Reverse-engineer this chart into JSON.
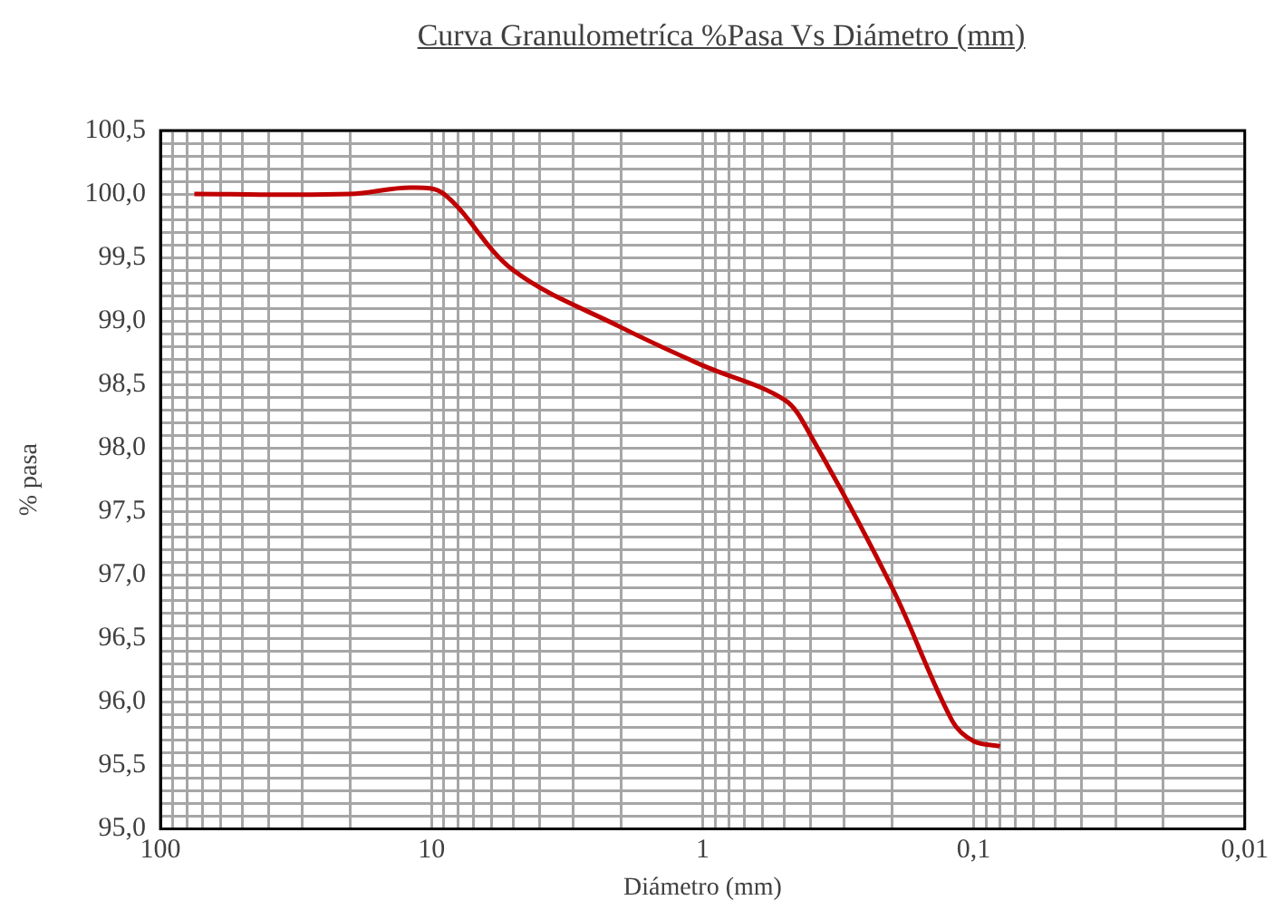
{
  "chart_data": {
    "type": "line",
    "title": "Curva Granulometríca %Pasa Vs Diámetro (mm)",
    "xlabel": "Diámetro (mm)",
    "ylabel": "% pasa",
    "log": "x",
    "grid": true,
    "legend": false,
    "marker": "none",
    "line_style": "solid",
    "xlim": [
      100,
      0.01
    ],
    "ylim": [
      95,
      100.5
    ],
    "xticks": [
      100,
      {
        "value": 90,
        "label": null
      },
      {
        "value": 80,
        "label": null
      },
      {
        "value": 70,
        "label": null
      },
      {
        "value": 60,
        "label": null
      },
      {
        "value": 50,
        "label": null
      },
      {
        "value": 40,
        "label": null
      },
      {
        "value": 30,
        "label": null
      },
      {
        "value": 20,
        "label": null
      },
      10,
      {
        "value": 9,
        "label": null
      },
      {
        "value": 8,
        "label": null
      },
      {
        "value": 7,
        "label": null
      },
      {
        "value": 6,
        "label": null
      },
      {
        "value": 5,
        "label": null
      },
      {
        "value": 4,
        "label": null
      },
      {
        "value": 3,
        "label": null
      },
      {
        "value": 2,
        "label": null
      },
      1,
      {
        "value": 0.9,
        "label": null
      },
      {
        "value": 0.8,
        "label": null
      },
      {
        "value": 0.7,
        "label": null
      },
      {
        "value": 0.6,
        "label": null
      },
      {
        "value": 0.5,
        "label": null
      },
      {
        "value": 0.4,
        "label": null
      },
      {
        "value": 0.3,
        "label": null
      },
      {
        "value": 0.2,
        "label": null
      },
      {
        "value": 0.1,
        "label": "0,1"
      },
      {
        "value": 0.09,
        "label": null
      },
      {
        "value": 0.08,
        "label": null
      },
      {
        "value": 0.07,
        "label": null
      },
      {
        "value": 0.06,
        "label": null
      },
      {
        "value": 0.05,
        "label": null
      },
      {
        "value": 0.04,
        "label": null
      },
      {
        "value": 0.03,
        "label": null
      },
      {
        "value": 0.02,
        "label": null
      },
      {
        "value": 0.01,
        "label": "0,01"
      }
    ],
    "yticks": [
      {
        "value": 95,
        "label": "95,0"
      },
      {
        "value": 95.1,
        "label": null
      },
      {
        "value": 95.2,
        "label": null
      },
      {
        "value": 95.3,
        "label": null
      },
      {
        "value": 95.4,
        "label": null
      },
      {
        "value": 95.5,
        "label": "95,5"
      },
      {
        "value": 95.6,
        "label": null
      },
      {
        "value": 95.7,
        "label": null
      },
      {
        "value": 95.8,
        "label": null
      },
      {
        "value": 95.9,
        "label": null
      },
      {
        "value": 96,
        "label": "96,0"
      },
      {
        "value": 96.1,
        "label": null
      },
      {
        "value": 96.2,
        "label": null
      },
      {
        "value": 96.3,
        "label": null
      },
      {
        "value": 96.4,
        "label": null
      },
      {
        "value": 96.5,
        "label": "96,5"
      },
      {
        "value": 96.6,
        "label": null
      },
      {
        "value": 96.7,
        "label": null
      },
      {
        "value": 96.8,
        "label": null
      },
      {
        "value": 96.9,
        "label": null
      },
      {
        "value": 97,
        "label": "97,0"
      },
      {
        "value": 97.1,
        "label": null
      },
      {
        "value": 97.2,
        "label": null
      },
      {
        "value": 97.3,
        "label": null
      },
      {
        "value": 97.4,
        "label": null
      },
      {
        "value": 97.5,
        "label": "97,5"
      },
      {
        "value": 97.6,
        "label": null
      },
      {
        "value": 97.7,
        "label": null
      },
      {
        "value": 97.8,
        "label": null
      },
      {
        "value": 97.9,
        "label": null
      },
      {
        "value": 98,
        "label": "98,0"
      },
      {
        "value": 98.1,
        "label": null
      },
      {
        "value": 98.2,
        "label": null
      },
      {
        "value": 98.3,
        "label": null
      },
      {
        "value": 98.4,
        "label": null
      },
      {
        "value": 98.5,
        "label": "98,5"
      },
      {
        "value": 98.6,
        "label": null
      },
      {
        "value": 98.7,
        "label": null
      },
      {
        "value": 98.8,
        "label": null
      },
      {
        "value": 98.9,
        "label": null
      },
      {
        "value": 99,
        "label": "99,0"
      },
      {
        "value": 99.1,
        "label": null
      },
      {
        "value": 99.2,
        "label": null
      },
      {
        "value": 99.3,
        "label": null
      },
      {
        "value": 99.4,
        "label": null
      },
      {
        "value": 99.5,
        "label": "99,5"
      },
      {
        "value": 99.6,
        "label": null
      },
      {
        "value": 99.7,
        "label": null
      },
      {
        "value": 99.8,
        "label": null
      },
      {
        "value": 99.9,
        "label": null
      },
      {
        "value": 100,
        "label": "100,0"
      },
      {
        "value": 100.1,
        "label": null
      },
      {
        "value": 100.2,
        "label": null
      },
      {
        "value": 100.3,
        "label": null
      },
      {
        "value": 100.4,
        "label": null
      },
      {
        "value": 100.5,
        "label": "100,5"
      }
    ],
    "x": [
      75,
      20,
      12,
      9,
      5,
      2,
      1,
      0.5,
      0.4,
      0.2,
      0.12,
      0.1,
      0.08
    ],
    "series": [
      {
        "color": "#c00000",
        "values": [
          100,
          100,
          100.05,
          100,
          99.4,
          98.95,
          98.65,
          98.38,
          98.1,
          96.9,
          95.85,
          95.69,
          95.65
        ]
      }
    ]
  }
}
